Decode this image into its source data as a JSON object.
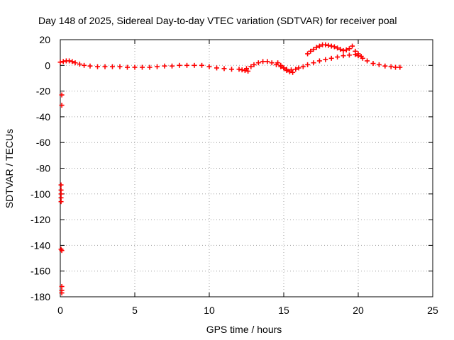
{
  "chart_data": {
    "type": "scatter",
    "title": "Day 148 of 2025, Sidereal Day-to-day VTEC variation (SDTVAR) for receiver poal",
    "xlabel": "GPS time / hours",
    "ylabel": "SDTVAR / TECUs",
    "xlim": [
      0,
      25
    ],
    "ylim": [
      -180,
      20
    ],
    "xticks": [
      0,
      5,
      10,
      15,
      20,
      25
    ],
    "yticks": [
      20,
      0,
      -20,
      -40,
      -60,
      -80,
      -100,
      -120,
      -140,
      -160,
      -180
    ],
    "grid": true,
    "marker": "+",
    "color": "#ff0000",
    "series": [
      {
        "name": "main-trace",
        "x": [
          0.0,
          0.2,
          0.4,
          0.6,
          0.8,
          1.0,
          1.3,
          1.6,
          2.0,
          2.5,
          3.0,
          3.5,
          4.0,
          4.5,
          5.0,
          5.5,
          6.0,
          6.5,
          7.0,
          7.5,
          8.0,
          8.5,
          9.0,
          9.5,
          10.0,
          10.5,
          11.0,
          11.5,
          12.0,
          12.5,
          12.8,
          13.0,
          13.3,
          13.6,
          13.9,
          14.2,
          14.5,
          14.8,
          15.0,
          15.2,
          15.5,
          15.8,
          16.0,
          16.3,
          16.6,
          17.0,
          17.4,
          17.8,
          18.2,
          18.6,
          19.0,
          19.4,
          19.8,
          20.0,
          20.3,
          20.6,
          21.0,
          21.4,
          21.8,
          22.2,
          22.5,
          22.8
        ],
        "y": [
          2.5,
          3.0,
          3.5,
          3.5,
          3.0,
          2.0,
          1.0,
          0.0,
          -0.5,
          -1.0,
          -1.0,
          -1.0,
          -1.0,
          -1.5,
          -1.5,
          -1.5,
          -1.5,
          -1.0,
          -0.5,
          -0.5,
          0.0,
          0.0,
          0.0,
          0.0,
          -1.0,
          -2.0,
          -2.5,
          -3.0,
          -3.0,
          -2.5,
          -1.0,
          0.5,
          2.0,
          3.0,
          3.0,
          2.0,
          0.5,
          -1.0,
          -2.0,
          -3.0,
          -3.5,
          -3.0,
          -2.0,
          -1.0,
          0.5,
          2.0,
          3.5,
          4.5,
          5.5,
          6.5,
          7.5,
          8.0,
          8.5,
          7.5,
          5.5,
          3.5,
          1.5,
          0.5,
          -0.5,
          -1.0,
          -1.5,
          -1.5
        ]
      },
      {
        "name": "disturbance-band",
        "x": [
          14.6,
          14.8,
          15.0,
          15.2,
          15.4,
          15.6,
          12.6,
          12.4,
          12.2
        ],
        "y": [
          2.0,
          0.0,
          -2.0,
          -4.0,
          -5.0,
          -5.5,
          -4.5,
          -4.0,
          -3.5
        ]
      },
      {
        "name": "upper-arc",
        "x": [
          16.6,
          16.8,
          17.0,
          17.2,
          17.4,
          17.6,
          17.8,
          18.0,
          18.2,
          18.4,
          18.6,
          18.8,
          19.0,
          19.2,
          19.4,
          19.6,
          19.8,
          20.0,
          20.2
        ],
        "y": [
          9.0,
          11.0,
          12.5,
          14.0,
          15.0,
          16.0,
          16.0,
          15.5,
          15.0,
          14.5,
          13.5,
          12.5,
          11.5,
          12.0,
          13.0,
          15.0,
          11.0,
          9.0,
          7.0
        ]
      },
      {
        "name": "early-outliers",
        "x": [
          0.1,
          0.1,
          0.05,
          0.05,
          0.05,
          0.05,
          0.05,
          0.05,
          0.1,
          0.1,
          0.1,
          0.1
        ],
        "y": [
          -23,
          -31,
          -93,
          -97,
          -100,
          -103,
          -106,
          -143,
          -144,
          -172,
          -175,
          -177
        ]
      }
    ]
  }
}
